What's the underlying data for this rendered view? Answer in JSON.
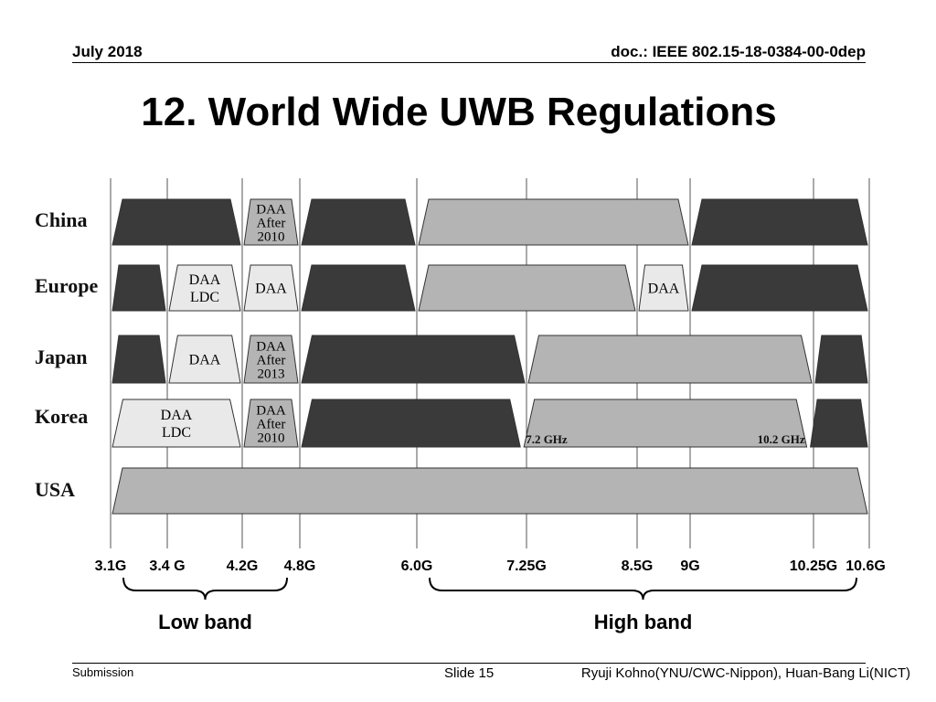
{
  "header": {
    "date": "July 2018",
    "doc_id": "doc.: IEEE 802.15-18-0384-00-0dep"
  },
  "title": "12. World Wide UWB Regulations",
  "footer": {
    "submission": "Submission",
    "slide": "Slide 15",
    "authors": "Ryuji Kohno(YNU/CWC-Nippon), Huan-Bang Li(NICT)"
  },
  "colors": {
    "dark_band": "#3a3a3a",
    "medium_band": "#b4b4b4",
    "light_band": "#e9e9e9",
    "outline": "#333333"
  },
  "diagram": {
    "frequency_ticks": [
      "3.1G",
      "3.4 G",
      "4.2G",
      "4.8G",
      "6.0G",
      "7.25G",
      "8.5G",
      "9G",
      "10.25G",
      "10.6G"
    ],
    "groups": [
      {
        "label": "Low band",
        "from": "3.1G",
        "to": "4.8G"
      },
      {
        "label": "High band",
        "from": "6.0G",
        "to": "10.6G"
      }
    ],
    "annotations": [
      {
        "text": "7.2 GHz",
        "row": "Korea",
        "near_ghz": 7.2
      },
      {
        "text": "10.2 GHz",
        "row": "Korea",
        "near_ghz": 10.2
      }
    ],
    "rows": [
      {
        "country": "China",
        "bands": [
          {
            "from_ghz": 3.1,
            "to_ghz": 4.2,
            "shade": "dark",
            "text": []
          },
          {
            "from_ghz": 4.2,
            "to_ghz": 4.8,
            "shade": "medium",
            "text": [
              "DAA",
              "After",
              "2010"
            ]
          },
          {
            "from_ghz": 4.8,
            "to_ghz": 6.0,
            "shade": "dark",
            "text": []
          },
          {
            "from_ghz": 6.0,
            "to_ghz": 9.0,
            "shade": "medium",
            "text": []
          },
          {
            "from_ghz": 9.0,
            "to_ghz": 10.6,
            "shade": "dark",
            "text": []
          }
        ]
      },
      {
        "country": "Europe",
        "bands": [
          {
            "from_ghz": 3.1,
            "to_ghz": 3.4,
            "shade": "dark",
            "text": []
          },
          {
            "from_ghz": 3.4,
            "to_ghz": 4.2,
            "shade": "light",
            "text": [
              "DAA",
              "LDC"
            ]
          },
          {
            "from_ghz": 4.2,
            "to_ghz": 4.8,
            "shade": "light",
            "text": [
              "DAA"
            ]
          },
          {
            "from_ghz": 4.8,
            "to_ghz": 6.0,
            "shade": "dark",
            "text": []
          },
          {
            "from_ghz": 6.0,
            "to_ghz": 8.5,
            "shade": "medium",
            "text": []
          },
          {
            "from_ghz": 8.5,
            "to_ghz": 9.0,
            "shade": "light",
            "text": [
              "DAA"
            ]
          },
          {
            "from_ghz": 9.0,
            "to_ghz": 10.6,
            "shade": "dark",
            "text": []
          }
        ]
      },
      {
        "country": "Japan",
        "bands": [
          {
            "from_ghz": 3.1,
            "to_ghz": 3.4,
            "shade": "dark",
            "text": []
          },
          {
            "from_ghz": 3.4,
            "to_ghz": 4.2,
            "shade": "light",
            "text": [
              "DAA"
            ]
          },
          {
            "from_ghz": 4.2,
            "to_ghz": 4.8,
            "shade": "medium",
            "text": [
              "DAA",
              "After",
              "2013"
            ]
          },
          {
            "from_ghz": 4.8,
            "to_ghz": 7.25,
            "shade": "dark",
            "text": []
          },
          {
            "from_ghz": 7.25,
            "to_ghz": 10.25,
            "shade": "medium",
            "text": []
          },
          {
            "from_ghz": 10.25,
            "to_ghz": 10.6,
            "shade": "dark",
            "text": []
          }
        ]
      },
      {
        "country": "Korea",
        "bands": [
          {
            "from_ghz": 3.1,
            "to_ghz": 4.2,
            "shade": "light",
            "text": [
              "DAA",
              "LDC"
            ]
          },
          {
            "from_ghz": 4.2,
            "to_ghz": 4.8,
            "shade": "medium",
            "text": [
              "DAA",
              "After",
              "2010"
            ]
          },
          {
            "from_ghz": 4.8,
            "to_ghz": 7.2,
            "shade": "dark",
            "text": []
          },
          {
            "from_ghz": 7.2,
            "to_ghz": 10.2,
            "shade": "medium",
            "text": []
          },
          {
            "from_ghz": 10.2,
            "to_ghz": 10.6,
            "shade": "dark",
            "text": []
          }
        ]
      },
      {
        "country": "USA",
        "bands": [
          {
            "from_ghz": 3.1,
            "to_ghz": 10.6,
            "shade": "medium",
            "text": []
          }
        ]
      }
    ]
  }
}
